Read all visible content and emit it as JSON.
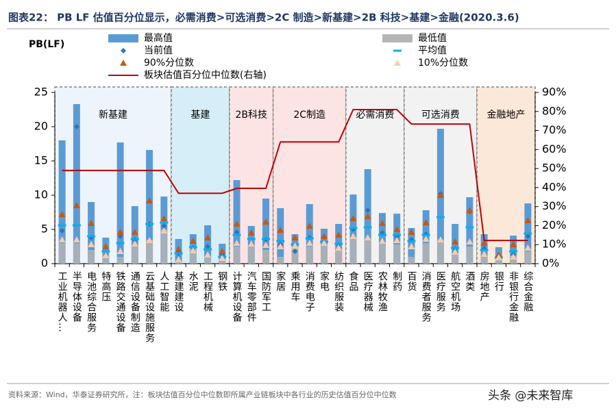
{
  "chart_data": {
    "type": "bar",
    "title": "图表22： PB LF 估值百分位显示，必需消费>可选消费>2C 制造>新基建>2B 科技>基建>金融(2020.3.6)",
    "y_label": "PB(LF)",
    "source": "资料来源：Wind，华泰证券研究所，注：板块估值百分位中位数即所属产业链板块中各行业的历史估值百分位中位数",
    "watermark": "头条 @未来智库",
    "categories": [
      "工业机器人…",
      "半导体设备",
      "电池综合服务",
      "特高压",
      "铁路交通设备",
      "通信设备制造",
      "云基础设施服务",
      "人工智能",
      "基建建设",
      "水泥",
      "工程机械",
      "钢铁",
      "计算机设备",
      "汽车零部件",
      "国防军工",
      "家居",
      "乘用车",
      "消费电子",
      "家电",
      "纺织服装",
      "食品",
      "医疗器械",
      "农林牧渔",
      "制药",
      "百货",
      "消费者服务",
      "医疗服务",
      "航空机场",
      "酒类",
      "房地产",
      "银行",
      "非银行金融",
      "综合金融"
    ],
    "sectors": [
      {
        "name": "新基建",
        "start": 0,
        "end": 7,
        "color": "#eef4fb"
      },
      {
        "name": "基建",
        "start": 8,
        "end": 11,
        "color": "#d5eef8"
      },
      {
        "name": "2B科技",
        "start": 12,
        "end": 14,
        "color": "#fce4e4"
      },
      {
        "name": "2C制造",
        "start": 15,
        "end": 19,
        "color": "#fce4e4"
      },
      {
        "name": "必需消费",
        "start": 20,
        "end": 23,
        "color": "#f2f2f2"
      },
      {
        "name": "可选消费",
        "start": 24,
        "end": 28,
        "color": "#f2f2f2"
      },
      {
        "name": "金融地产",
        "start": 29,
        "end": 32,
        "color": "#fce8d8"
      }
    ],
    "series": [
      {
        "name": "最高值",
        "kind": "bar",
        "color": "#5b9bd5",
        "values": [
          18,
          23.3,
          9,
          3.8,
          17.7,
          8.4,
          16.6,
          9.8,
          3.6,
          4.3,
          5.6,
          2.9,
          12.2,
          5.5,
          9.5,
          8.1,
          4.3,
          8.7,
          5.1,
          5.8,
          10.1,
          13.8,
          7.4,
          7.3,
          5.2,
          7.8,
          19.7,
          5.8,
          9.7,
          4.3,
          2.4,
          4.1,
          8.8
        ]
      },
      {
        "name": "最低值",
        "kind": "bar",
        "color": "#b4b4b4",
        "values": [
          3,
          3,
          2,
          1.5,
          1,
          2.5,
          3.5,
          5,
          0.3,
          2.3,
          1,
          0.7,
          2.5,
          2.5,
          2,
          1,
          2.5,
          2.5,
          2.7,
          2,
          3.8,
          3.5,
          3,
          2.8,
          1,
          3,
          3.5,
          1.5,
          2.5,
          1,
          0.8,
          1.2,
          1.8
        ]
      },
      {
        "name": "当前值",
        "kind": "marker",
        "marker": "diamond",
        "color": "#2e75b6",
        "values": [
          4.8,
          20,
          3.8,
          1.3,
          4,
          3.5,
          5.8,
          5.5,
          1.5,
          2.3,
          2.5,
          1.3,
          4.6,
          2.9,
          3.5,
          2.8,
          1.8,
          3.8,
          3.2,
          2.8,
          5,
          7.8,
          4.5,
          4,
          3.5,
          4.3,
          10.2,
          2.2,
          7.6,
          2.2,
          0.9,
          1.3,
          4
        ]
      },
      {
        "name": "平均值",
        "kind": "marker",
        "marker": "dash",
        "color": "#00b0f0",
        "values": [
          5.6,
          5.6,
          4,
          1.8,
          3,
          3.6,
          5.8,
          6,
          1.5,
          2.4,
          2.1,
          1,
          4.2,
          3.6,
          3.6,
          3.3,
          2.8,
          3.7,
          3.2,
          2.9,
          5.2,
          5.3,
          4.2,
          4.2,
          3.3,
          4.2,
          6.8,
          2.3,
          5.3,
          2,
          0.9,
          1.8,
          4.4
        ]
      },
      {
        "name": "90%分位数",
        "kind": "marker",
        "marker": "triangle",
        "color": "#c55a11",
        "values": [
          7.2,
          8.5,
          5.9,
          2.5,
          4.6,
          4.6,
          9.2,
          6.6,
          2.1,
          3.3,
          3.8,
          1.8,
          5.8,
          4.5,
          6.1,
          4.9,
          3.8,
          5.5,
          4,
          4.2,
          6.6,
          6.9,
          5.9,
          5,
          4.6,
          6,
          10,
          3.2,
          7.8,
          3,
          1.3,
          2.8,
          6.3
        ]
      },
      {
        "name": "10%分位数",
        "kind": "marker",
        "marker": "triangle",
        "color": "#f8cbad",
        "values": [
          3.5,
          3.5,
          2.8,
          1.2,
          1.8,
          2.9,
          3.4,
          4.8,
          0.6,
          1.9,
          1.3,
          0.8,
          3,
          2.9,
          2.7,
          2.5,
          2.6,
          3,
          3,
          2.3,
          4,
          3.8,
          3.3,
          3.4,
          2.5,
          3.6,
          3.5,
          1.7,
          3.2,
          1.4,
          0.9,
          1,
          2.3
        ]
      },
      {
        "name": "板块估值百分位中位数(右轴)",
        "kind": "line",
        "axis": "y2",
        "color": "#c00000",
        "values": [
          49,
          49,
          49,
          49,
          49,
          49,
          49,
          49,
          37,
          37,
          37,
          37,
          39.6,
          39.6,
          39.6,
          64,
          64,
          64,
          64,
          64,
          81,
          81,
          81,
          81,
          73.4,
          73.4,
          73.4,
          73.4,
          73.4,
          12.2,
          12.2,
          12.2,
          12.2
        ]
      }
    ],
    "ylim": [
      0,
      25
    ],
    "yticks": [
      0,
      5,
      10,
      15,
      20,
      25
    ],
    "y2lim": [
      0,
      90
    ],
    "y2ticks": [
      {
        "value": 0,
        "label": "0%"
      },
      {
        "value": 10,
        "label": "10%"
      },
      {
        "value": 20,
        "label": "20%"
      },
      {
        "value": 30,
        "label": "30%"
      },
      {
        "value": 40,
        "label": "40%"
      },
      {
        "value": 50,
        "label": "50%"
      },
      {
        "value": 60,
        "label": "60%"
      },
      {
        "value": 70,
        "label": "70%"
      },
      {
        "value": 80,
        "label": "80%"
      },
      {
        "value": 90,
        "label": "90%"
      }
    ]
  }
}
